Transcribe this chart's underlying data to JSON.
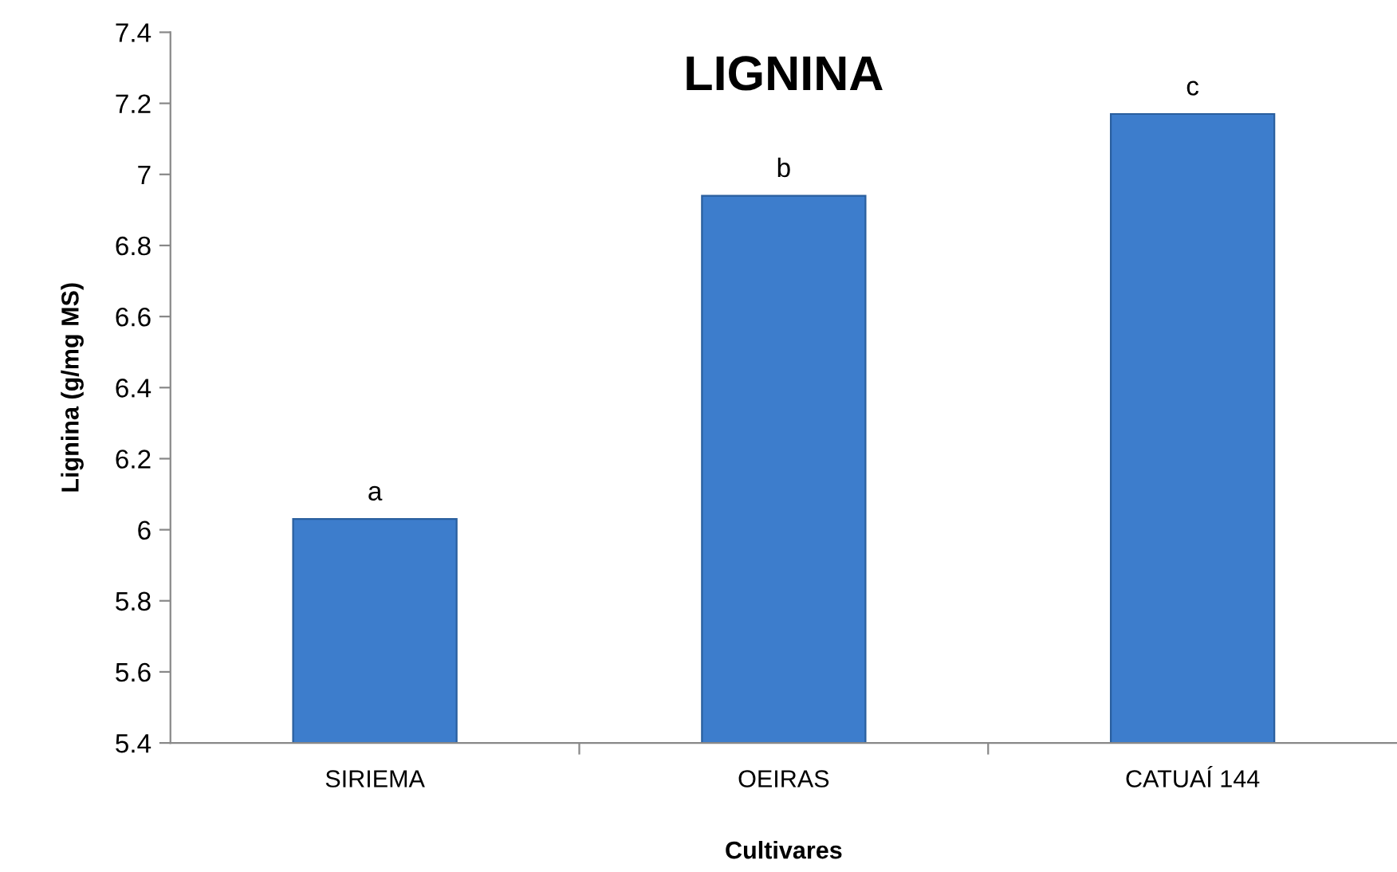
{
  "chart_data": {
    "type": "bar",
    "title": "LIGNINA",
    "xlabel": "Cultivares",
    "ylabel": "Lignina (g/mg MS)",
    "categories": [
      "SIRIEMA",
      "OEIRAS",
      "CATUAÍ 144"
    ],
    "values": [
      6.03,
      6.94,
      7.17
    ],
    "color": "#3d7dcc",
    "ylim": [
      5.4,
      7.4
    ],
    "yticks": [
      {
        "value": 5.4,
        "label": "5.4"
      },
      {
        "value": 5.6,
        "label": "5.6"
      },
      {
        "value": 5.8,
        "label": "5.8"
      },
      {
        "value": 6,
        "label": "6"
      },
      {
        "value": 6.2,
        "label": "6.2"
      },
      {
        "value": 6.4,
        "label": "6.4"
      },
      {
        "value": 6.6,
        "label": "6.6"
      },
      {
        "value": 6.8,
        "label": "6.8"
      },
      {
        "value": 7,
        "label": "7"
      },
      {
        "value": 7.2,
        "label": "7.2"
      },
      {
        "value": 7.4,
        "label": "7.4"
      }
    ],
    "grid": false,
    "annotations": [
      {
        "text": "a",
        "x": "SIRIEMA",
        "y": 6.03
      },
      {
        "text": "b",
        "x": "OEIRAS",
        "y": 6.94
      },
      {
        "text": "c",
        "x": "CATUAÍ 144",
        "y": 7.17
      }
    ]
  }
}
